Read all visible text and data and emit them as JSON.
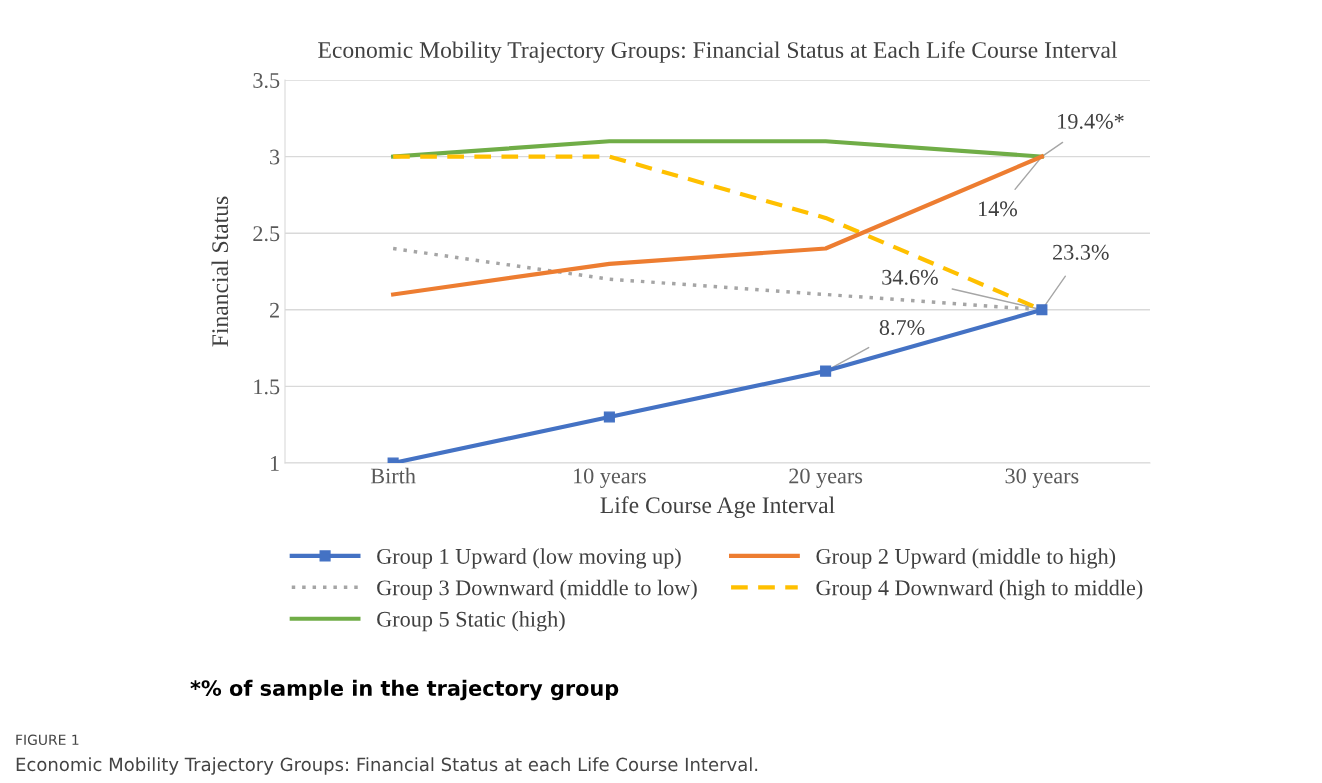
{
  "chart_data": {
    "type": "line",
    "title": "Economic Mobility Trajectory Groups: Financial Status at Each Life Course Interval",
    "xlabel": "Life Course Age Interval",
    "ylabel": "Financial Status",
    "categories": [
      "Birth",
      "10 years",
      "20 years",
      "30 years"
    ],
    "series": [
      {
        "name": "Group 1 Upward (low moving up)",
        "color": "#4472c4",
        "values": [
          1,
          1.3,
          1.6,
          2
        ],
        "marker": "square",
        "line_style": "solid"
      },
      {
        "name": "Group 2 Upward (middle to high)",
        "color": "#ed7d31",
        "values": [
          2.1,
          2.3,
          2.4,
          3
        ],
        "marker": "none",
        "line_style": "solid"
      },
      {
        "name": "Group 3 Downward (middle to low)",
        "color": "#a5a5a5",
        "values": [
          2.4,
          2.2,
          2.1,
          2.0
        ],
        "marker": "none",
        "line_style": "dotted"
      },
      {
        "name": "Group 4 Downward (high to middle)",
        "color": "#ffc000",
        "values": [
          3,
          3,
          2.6,
          2
        ],
        "marker": "none",
        "line_style": "dashed"
      },
      {
        "name": "Group 5 Static (high)",
        "color": "#70ad47",
        "values": [
          3,
          3.1,
          3.1,
          3
        ],
        "marker": "none",
        "line_style": "solid"
      }
    ],
    "ylim": [
      1,
      3.5
    ],
    "yticks": [
      1,
      1.5,
      2,
      2.5,
      3,
      3.5
    ],
    "grid": "y",
    "legend": "bottom",
    "annotations": [
      {
        "text": "19.4%*",
        "x": "30 years",
        "y": 3
      },
      {
        "text": "14%",
        "x": "30 years",
        "y": 3
      },
      {
        "text": "23.3%",
        "x": "30 years",
        "y": 2
      },
      {
        "text": "34.6%",
        "x": "30 years",
        "y": 2
      },
      {
        "text": "8.7%",
        "x": "20 years",
        "y": 1.6
      },
      "*% of sample in the trajectory group",
      "FIGURE 1",
      "Economic Mobility Trajectory Groups: Financial Status at each Life Course Interval."
    ]
  }
}
